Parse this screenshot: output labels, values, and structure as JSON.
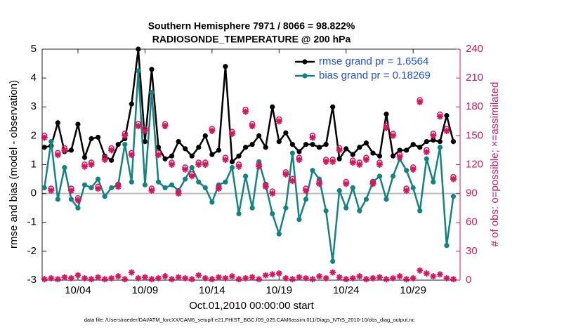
{
  "chart_data": {
    "type": "line",
    "title": "Southern Hemisphere 7971 / 8066 = 98.822%",
    "subtitle": "RADIOSONDE_TEMPERATURE @ 200 hPa",
    "xlabel": "Oct.01,2010 00:00:00 start",
    "ylabel": "rmse and bias (model - observation)",
    "y2label": "# of obs: o=possible; ×=assimilated",
    "footnote": "data file: /Users/raeder/DAI/ATM_forcXX/CAM6_setup/f.e21.FHIST_BGC.f09_025.CAM6assim.011/Diags_NTrS_2010-10/obs_diag_output.nc",
    "legend": "upper right",
    "grid": false,
    "x": [
      0.5,
      1,
      1.5,
      2,
      2.5,
      3,
      3.5,
      4,
      4.5,
      5,
      5.5,
      6,
      6.5,
      7,
      7.5,
      8,
      8.5,
      9,
      9.5,
      10,
      10.5,
      11,
      11.5,
      12,
      12.5,
      13,
      13.5,
      14,
      14.5,
      15,
      15.5,
      16,
      16.5,
      17,
      17.5,
      18,
      18.5,
      19,
      19.5,
      20,
      20.5,
      21,
      21.5,
      22,
      22.5,
      23,
      23.5,
      24,
      24.5,
      25,
      25.5,
      26,
      26.5,
      27,
      27.5,
      28,
      28.5,
      29,
      29.5,
      30,
      30.5,
      31
    ],
    "xlim": [
      0.33,
      31.5
    ],
    "xticks": [
      {
        "value": 3,
        "label": "10/04"
      },
      {
        "value": 8,
        "label": "10/09"
      },
      {
        "value": 13,
        "label": "10/14"
      },
      {
        "value": 18,
        "label": "10/19"
      },
      {
        "value": 23,
        "label": "10/24"
      },
      {
        "value": 28,
        "label": "10/29"
      }
    ],
    "ylim": [
      -3,
      5
    ],
    "yticks": [
      -3,
      -2,
      -1,
      0,
      1,
      2,
      3,
      4,
      5
    ],
    "y2lim": [
      0,
      240
    ],
    "y2ticks": [
      0,
      30,
      60,
      90,
      120,
      150,
      180,
      210,
      240
    ],
    "zero_line_color": "#bbbbbb",
    "y2_color": "#d4175e",
    "series": [
      {
        "name": "rmse grand pr = 1.6564",
        "color": "#000000",
        "marker": "dot",
        "values": [
          1.6,
          1.65,
          2.45,
          1.45,
          1.5,
          2.4,
          1.25,
          1.9,
          1.95,
          1.3,
          1.15,
          1.7,
          1.9,
          3.1,
          5.0,
          1.8,
          4.3,
          1.6,
          1.2,
          1.3,
          1.8,
          1.55,
          1.3,
          1.6,
          2.0,
          1.35,
          1.5,
          4.4,
          1.1,
          1.3,
          1.6,
          1.7,
          2.0,
          1.6,
          3.0,
          1.8,
          2.1,
          1.7,
          1.45,
          1.7,
          1.7,
          1.6,
          1.7,
          3.0,
          1.2,
          1.55,
          1.35,
          1.6,
          1.75,
          1.4,
          1.3,
          2.75,
          1.3,
          1.5,
          1.5,
          1.7,
          1.6,
          1.8,
          1.85,
          1.8,
          2.7,
          1.8
        ]
      },
      {
        "name": "bias grand pr = 0.18269",
        "color": "#138381",
        "marker": "dot",
        "values": [
          0.2,
          1.8,
          -0.2,
          0.9,
          -0.2,
          -0.5,
          0.3,
          0.2,
          0.5,
          -0.1,
          0.2,
          0.3,
          1.7,
          0.4,
          4.25,
          0.3,
          3.5,
          0.4,
          0.2,
          0.3,
          0.1,
          0.5,
          0.9,
          0.4,
          0.2,
          -0.3,
          0.3,
          0.4,
          0.9,
          -0.7,
          0.6,
          -0.5,
          1.1,
          0.3,
          -0.7,
          -1.4,
          -0.5,
          1.4,
          -0.9,
          -0.2,
          0.8,
          0.5,
          -0.6,
          -2.35,
          0.1,
          -0.5,
          0.2,
          -0.6,
          -0.2,
          0.4,
          0.6,
          -0.2,
          0.6,
          1.2,
          0.8,
          0.2,
          -0.6,
          1.2,
          0.4,
          1.6,
          -1.8,
          -0.1
        ]
      },
      {
        "axis": "y2",
        "color": "#d4175e",
        "marker": "o*",
        "values": [
          148,
          93,
          130,
          135,
          93,
          83,
          118,
          120,
          95,
          125,
          135,
          97,
          150,
          130,
          160,
          155,
          93,
          130,
          160,
          120,
          90,
          115,
          108,
          120,
          120,
          155,
          95,
          125,
          152,
          118,
          175,
          160,
          118,
          97,
          90,
          165,
          110,
          103,
          125,
          93,
          148,
          100,
          123,
          123,
          135,
          100,
          122,
          120,
          125,
          100,
          120,
          158,
          150,
          128,
          93,
          115,
          185,
          133,
          150,
          170,
          155,
          105
        ]
      },
      {
        "axis": "y2",
        "color": "#d4175e",
        "marker": "*",
        "values": [
          1,
          2,
          1,
          3,
          2,
          5,
          2,
          1,
          3,
          1,
          2,
          4,
          1,
          8,
          2,
          3,
          1,
          2,
          4,
          1,
          3,
          2,
          1,
          5,
          2,
          1,
          3,
          2,
          4,
          1,
          2,
          3,
          1,
          5,
          6,
          7,
          2,
          1,
          3,
          2,
          1,
          4,
          2,
          8,
          3,
          1,
          2,
          4,
          1,
          2,
          3,
          1,
          2,
          4,
          1,
          2,
          10,
          7,
          4,
          6,
          2,
          1
        ]
      }
    ]
  }
}
